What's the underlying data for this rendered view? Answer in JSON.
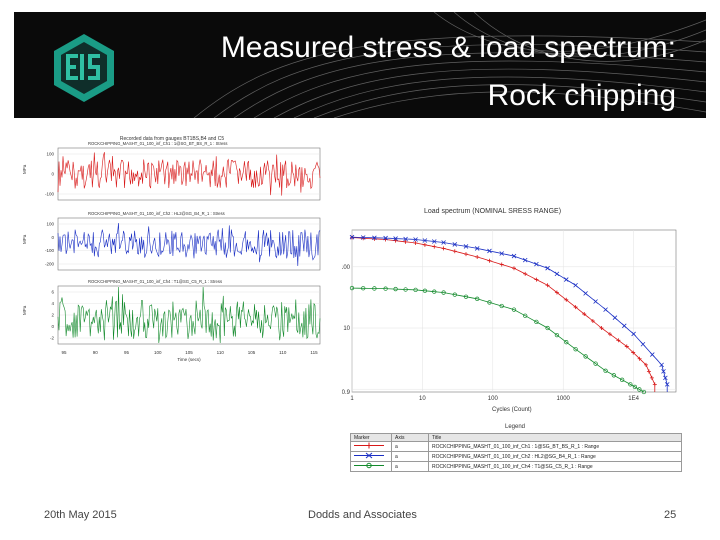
{
  "slide": {
    "title_line1": "Measured stress & load spectrum:",
    "title_line2": "Rock chipping",
    "date": "20th May 2015",
    "company": "Dodds and Associates",
    "page_number": "25"
  },
  "timeseries": {
    "title": "Recorded data from gauges BT1BS,B4 and C5",
    "subplots": [
      {
        "label": "ROCKCHIPPING_MASHT_01_100_inf_Ch1 : 1@SG_BT_BS_R_1 : Stress",
        "color": "#d81818",
        "yticks": [
          "100",
          "0",
          "-100"
        ],
        "ylabel": "MPa"
      },
      {
        "label": "ROCKCHIPPING_MASHT_01_100_inf_Ch2 : HL2@SG_B4_R_1 : Stress",
        "color": "#1a2fc4",
        "yticks": [
          "100",
          "0",
          "-100",
          "-200"
        ],
        "ylabel": "MPa"
      },
      {
        "label": "ROCKCHIPPING_MASHT_01_100_inf_Ch4 : T1@SG_C5_R_1 : Stress",
        "color": "#138a2c",
        "yticks": [
          "6",
          "4",
          "2",
          "0",
          "-2"
        ],
        "ylabel": "MPa"
      }
    ],
    "xticks": [
      "95",
      "90",
      "95",
      "100",
      "105",
      "110",
      "105",
      "110",
      "115"
    ],
    "xlabel": "Time (secs)"
  },
  "chart_data": {
    "type": "line",
    "title": "Load spectrum (NOMINAL SRESS RANGE)",
    "xlabel": "Cycles (Count)",
    "x_scale": "log",
    "y_scale": "log",
    "xticks": [
      "1",
      "10",
      "100",
      "1000",
      "1E4"
    ],
    "yticks": [
      "100",
      "10",
      "0.9"
    ],
    "xlim": [
      1,
      40000
    ],
    "ylim": [
      0.9,
      400
    ],
    "series": [
      {
        "color": "#d81818",
        "marker": "+",
        "x": [
          1,
          3,
          8,
          20,
          60,
          200,
          600,
          1500,
          3500,
          8000,
          15000,
          20000
        ],
        "y": [
          300,
          280,
          245,
          200,
          145,
          95,
          50,
          22,
          10,
          5,
          2.5,
          1.2
        ]
      },
      {
        "color": "#1a2fc4",
        "marker": "x",
        "x": [
          1,
          3,
          8,
          20,
          60,
          200,
          600,
          1500,
          4000,
          10000,
          25000,
          30000
        ],
        "y": [
          305,
          295,
          280,
          250,
          200,
          150,
          95,
          50,
          20,
          8,
          2.5,
          1.2
        ]
      },
      {
        "color": "#138a2c",
        "marker": "o",
        "x": [
          1,
          3,
          8,
          20,
          60,
          200,
          600,
          1500,
          4000,
          9000,
          14000
        ],
        "y": [
          45,
          44,
          42,
          38,
          30,
          20,
          10,
          4.5,
          2,
          1.2,
          0.9
        ]
      }
    ]
  },
  "legend": {
    "label": "Legend",
    "headers": [
      "Marker",
      "Axis",
      "Title"
    ],
    "rows": [
      {
        "axis": "a",
        "title": "ROCKCHIPPING_MASHT_01_100_inf_Ch1 : 1@SG_BT_BS_R_1 : Range",
        "color": "#d81818",
        "marker": "+"
      },
      {
        "axis": "a",
        "title": "ROCKCHIPPING_MASHT_01_100_inf_Ch2 : HL2@SG_B4_R_1 : Range",
        "color": "#1a2fc4",
        "marker": "x"
      },
      {
        "axis": "a",
        "title": "ROCKCHIPPING_MASHT_01_100_inf_Ch4 : T1@SG_C5_R_1 : Range",
        "color": "#138a2c",
        "marker": "o"
      }
    ]
  }
}
